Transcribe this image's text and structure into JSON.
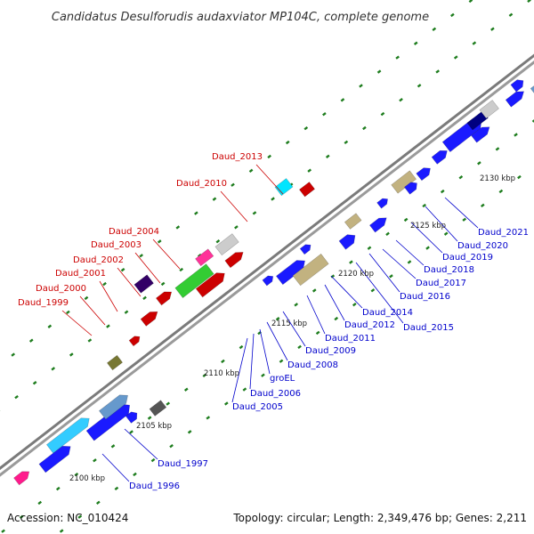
{
  "title": "Candidatus Desulforudis audaxviator MP104C, complete genome",
  "footer": {
    "accession": "Accession: NC_010424",
    "summary": "Topology: circular; Length: 2,349,476 bp; Genes: 2,211"
  },
  "colors": {
    "backbone": "#8c8c8c",
    "tick": "#1e7d1e",
    "red_label": "#cc0000",
    "blue_label": "#0000cc"
  },
  "scale_labels": [
    "2100 kbp",
    "2105 kbp",
    "2110 kbp",
    "2115 kbp",
    "2120 kbp",
    "2125 kbp",
    "2130 kbp"
  ],
  "top_strand_labels": [
    "Daud_1999",
    "Daud_2000",
    "Daud_2001",
    "Daud_2002",
    "Daud_2003",
    "Daud_2004",
    "Daud_2010",
    "Daud_2013"
  ],
  "bottom_strand_labels": [
    "Daud_1996",
    "Daud_1997",
    "Daud_2005",
    "Daud_2006",
    "groEL",
    "Daud_2008",
    "Daud_2009",
    "Daud_2011",
    "Daud_2012",
    "Daud_2014",
    "Daud_2015",
    "Daud_2016",
    "Daud_2017",
    "Daud_2018",
    "Daud_2019",
    "Daud_2020",
    "Daud_2021"
  ],
  "legend": []
}
